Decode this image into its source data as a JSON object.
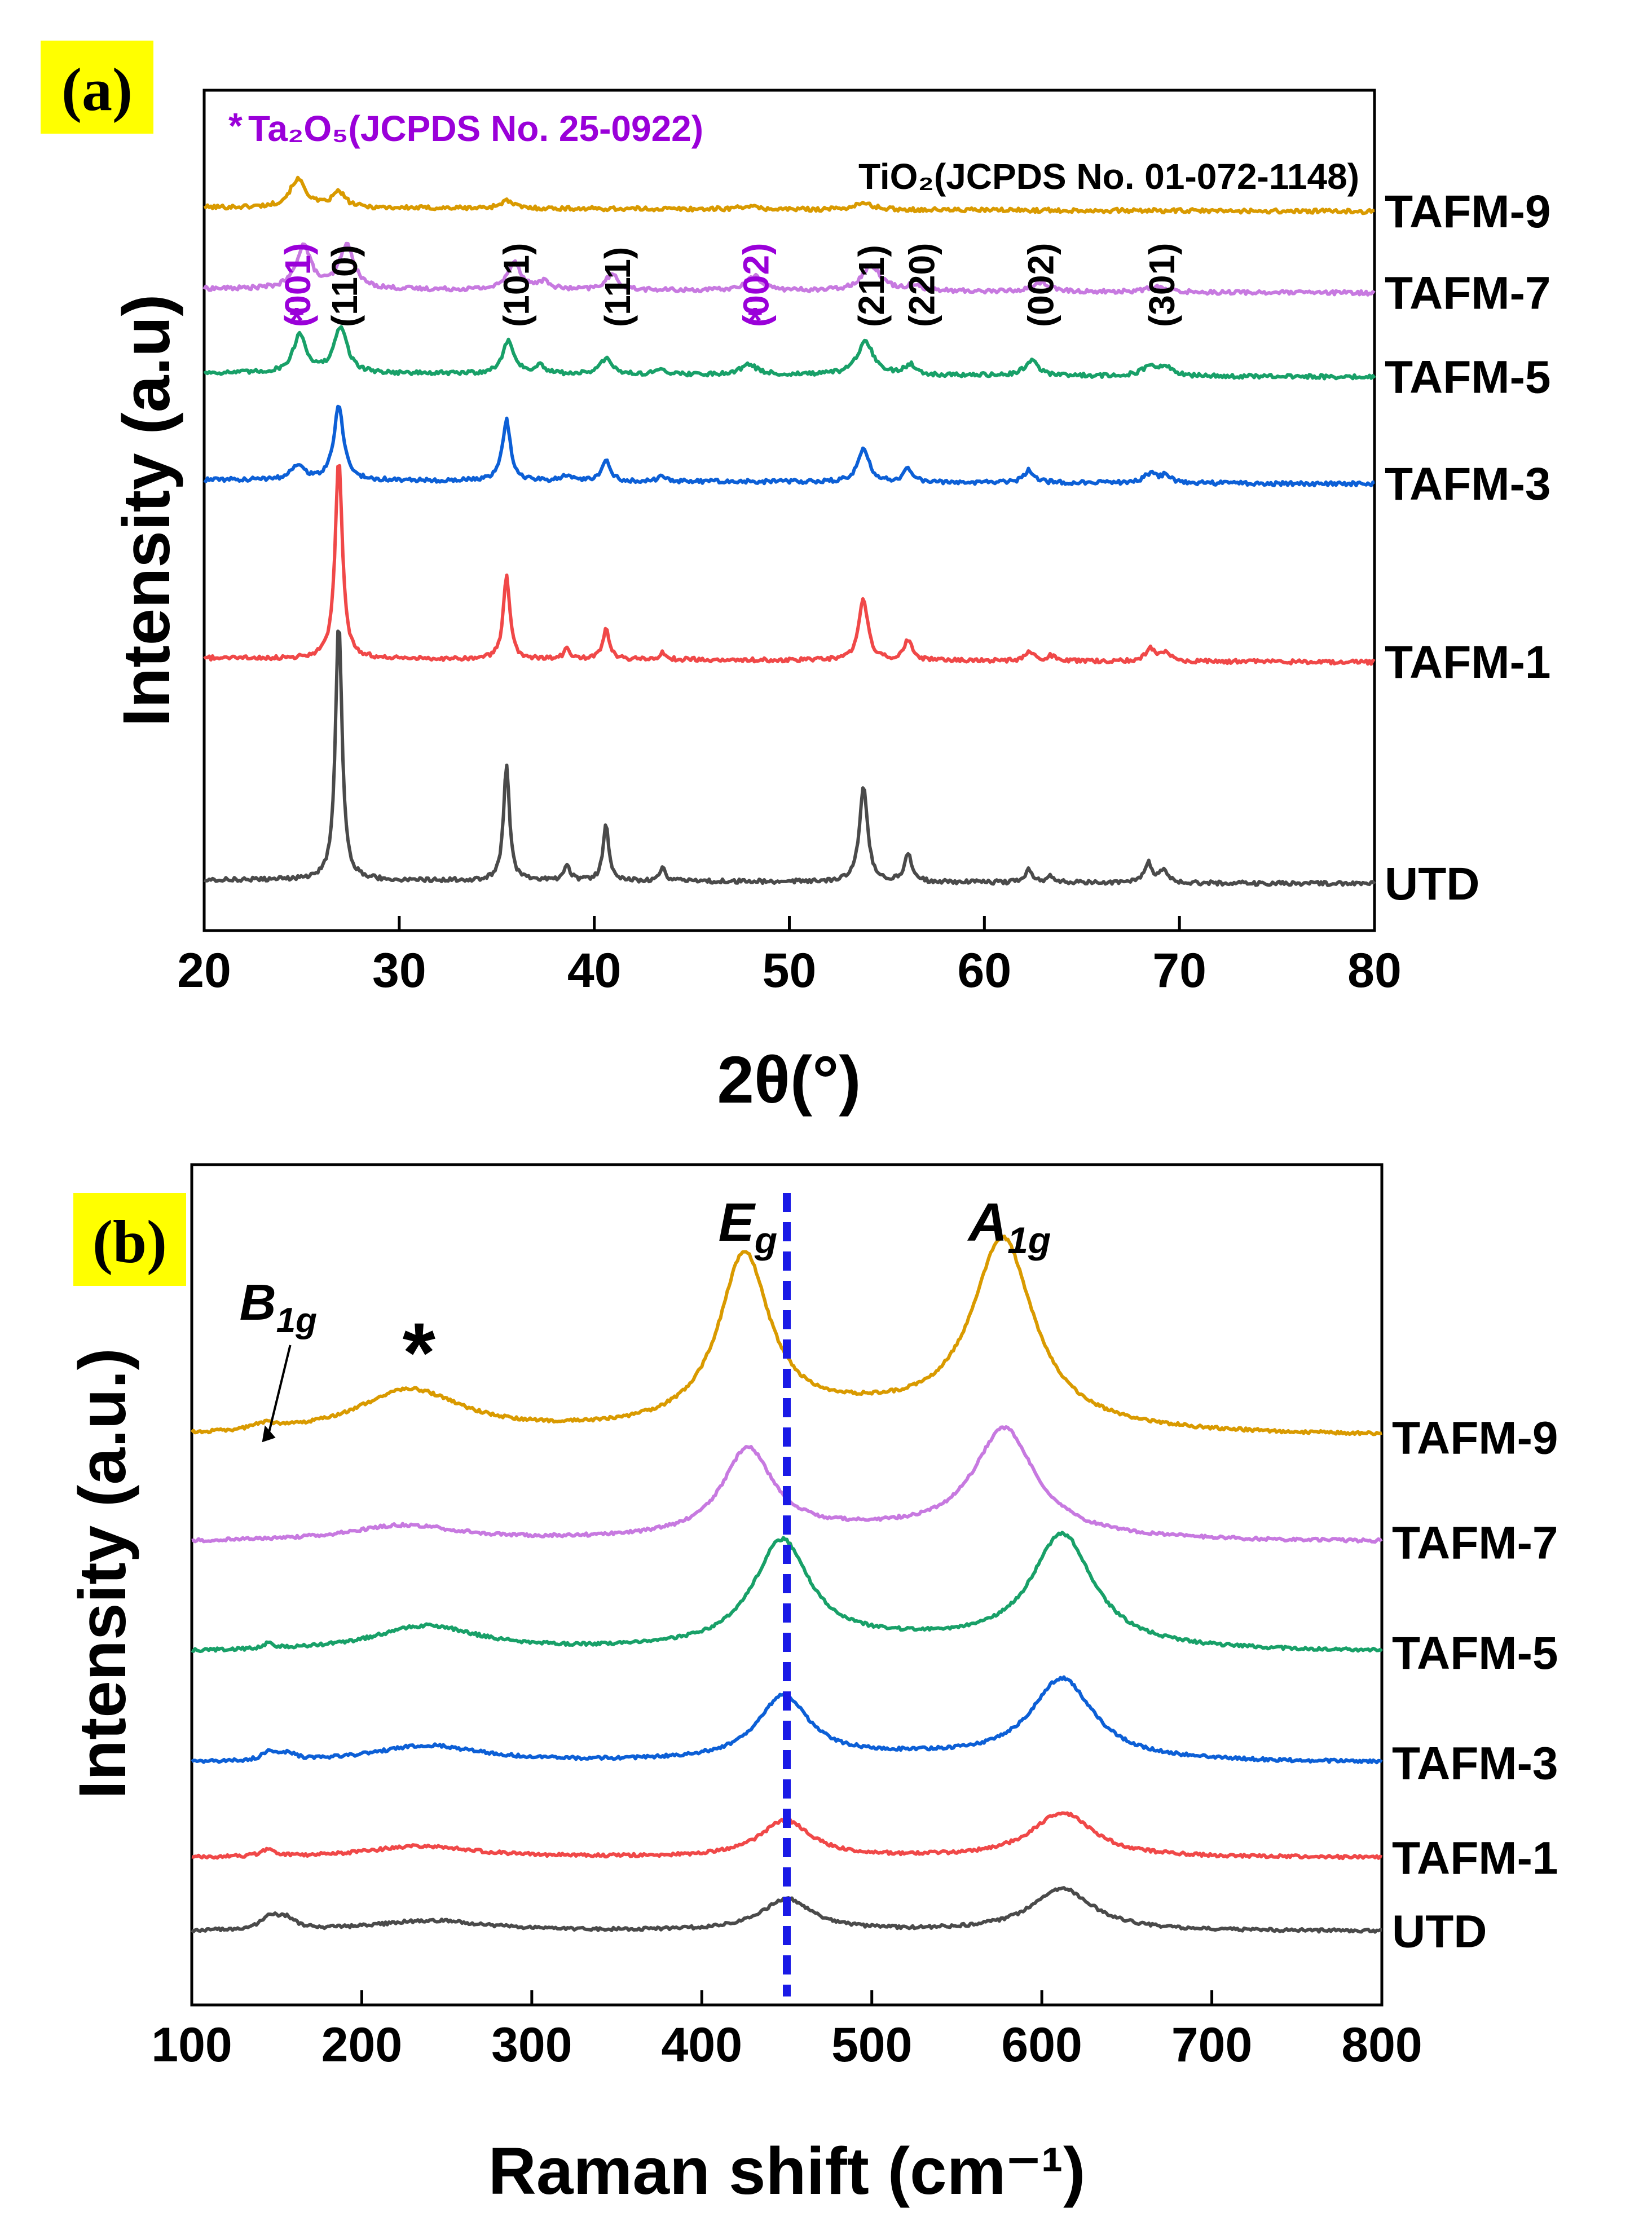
{
  "chart_data": [
    {
      "panel_label": "(a)",
      "type": "line",
      "xlabel": "2θ(°)",
      "ylabel": "Intensity (a.u)",
      "xlim": [
        20,
        80
      ],
      "xticks": [
        20,
        30,
        40,
        50,
        60,
        70,
        80
      ],
      "legend": {
        "ta2o5_marker": "*",
        "ta2o5_text": "Ta₂O₅(JCPDS No. 25-0922)",
        "tio2_text": "TiO₂(JCPDS No. 01-072-1148)",
        "ta2o5_color": "#9a00d9",
        "tio2_color": "#000000"
      },
      "phase_labels": [
        {
          "x": 24.8,
          "text": "(001)",
          "phase": "Ta2O5",
          "star": true
        },
        {
          "x": 27.2,
          "text": "(110)",
          "phase": "TiO2"
        },
        {
          "x": 36.0,
          "text": "(101)",
          "phase": "TiO2"
        },
        {
          "x": 41.2,
          "text": "(111)",
          "phase": "TiO2"
        },
        {
          "x": 48.3,
          "text": "(002)",
          "phase": "Ta2O5",
          "star": true
        },
        {
          "x": 54.2,
          "text": "(211)",
          "phase": "TiO2"
        },
        {
          "x": 56.8,
          "text": "(220)",
          "phase": "TiO2"
        },
        {
          "x": 62.9,
          "text": "(002)",
          "phase": "TiO2"
        },
        {
          "x": 69.1,
          "text": "(301)",
          "phase": "TiO2"
        }
      ],
      "series": [
        {
          "name": "TAFM-9",
          "color": "#d99a00",
          "baseline": 0.92,
          "slope": -0.008,
          "peaks": [
            [
              24.8,
              0.055,
              0.5
            ],
            [
              26.9,
              0.03,
              0.4
            ],
            [
              35.5,
              0.015,
              0.4
            ],
            [
              53.8,
              0.012,
              0.6
            ],
            [
              47.8,
              0.006,
              0.5
            ]
          ]
        },
        {
          "name": "TAFM-7",
          "color": "#c779e0",
          "baseline": 0.76,
          "slope": -0.008,
          "peaks": [
            [
              25.1,
              0.085,
              0.45
            ],
            [
              27.3,
              0.085,
              0.45
            ],
            [
              35.9,
              0.055,
              0.4
            ],
            [
              37.4,
              0.015,
              0.4
            ],
            [
              40.9,
              0.03,
              0.4
            ],
            [
              48.2,
              0.028,
              0.5
            ],
            [
              54.2,
              0.05,
              0.6
            ],
            [
              56.4,
              0.012,
              0.4
            ],
            [
              62.9,
              0.018,
              0.5
            ],
            [
              68.8,
              0.01,
              0.6
            ]
          ]
        },
        {
          "name": "TAFM-5",
          "color": "#18a068",
          "baseline": 0.595,
          "slope": -0.008,
          "peaks": [
            [
              24.9,
              0.075,
              0.4
            ],
            [
              27.0,
              0.09,
              0.4
            ],
            [
              35.6,
              0.065,
              0.35
            ],
            [
              37.2,
              0.015,
              0.3
            ],
            [
              40.6,
              0.03,
              0.35
            ],
            [
              43.5,
              0.01,
              0.3
            ],
            [
              47.9,
              0.02,
              0.5
            ],
            [
              53.9,
              0.065,
              0.5
            ],
            [
              56.2,
              0.02,
              0.35
            ],
            [
              62.4,
              0.03,
              0.4
            ],
            [
              68.5,
              0.018,
              0.5
            ],
            [
              69.3,
              0.015,
              0.4
            ]
          ]
        },
        {
          "name": "TAFM-3",
          "color": "#0c5fd6",
          "baseline": 0.385,
          "slope": -0.008,
          "peaks": [
            [
              24.8,
              0.03,
              0.4
            ],
            [
              26.9,
              0.145,
              0.3
            ],
            [
              35.5,
              0.12,
              0.25
            ],
            [
              38.6,
              0.012,
              0.3
            ],
            [
              40.6,
              0.04,
              0.25
            ],
            [
              43.5,
              0.01,
              0.25
            ],
            [
              53.8,
              0.065,
              0.35
            ],
            [
              56.1,
              0.025,
              0.3
            ],
            [
              62.3,
              0.025,
              0.3
            ],
            [
              68.5,
              0.018,
              0.4
            ],
            [
              69.3,
              0.015,
              0.3
            ]
          ]
        },
        {
          "name": "TAFM-1",
          "color": "#f04848",
          "baseline": 0.035,
          "slope": -0.008,
          "peaks": [
            [
              26.9,
              0.39,
              0.22
            ],
            [
              35.5,
              0.165,
              0.2
            ],
            [
              38.6,
              0.02,
              0.2
            ],
            [
              40.6,
              0.06,
              0.2
            ],
            [
              43.5,
              0.015,
              0.2
            ],
            [
              53.8,
              0.12,
              0.28
            ],
            [
              56.1,
              0.04,
              0.25
            ],
            [
              62.3,
              0.02,
              0.25
            ],
            [
              63.4,
              0.01,
              0.25
            ],
            [
              68.5,
              0.025,
              0.3
            ],
            [
              69.3,
              0.018,
              0.25
            ]
          ]
        },
        {
          "name": "UTD",
          "color": "#4a4a4a",
          "baseline": -0.4,
          "slope": -0.008,
          "peaks": [
            [
              26.9,
              0.51,
              0.2
            ],
            [
              35.5,
              0.23,
              0.18
            ],
            [
              38.6,
              0.03,
              0.2
            ],
            [
              40.6,
              0.11,
              0.18
            ],
            [
              43.5,
              0.025,
              0.2
            ],
            [
              53.8,
              0.185,
              0.25
            ],
            [
              56.1,
              0.055,
              0.22
            ],
            [
              62.3,
              0.025,
              0.2
            ],
            [
              63.4,
              0.012,
              0.2
            ],
            [
              68.4,
              0.04,
              0.25
            ],
            [
              69.2,
              0.025,
              0.22
            ]
          ]
        }
      ]
    },
    {
      "panel_label": "(b)",
      "type": "line",
      "xlabel": "Raman shift (cm⁻¹)",
      "ylabel": "Intensity (a.u.)",
      "xlim": [
        100,
        800
      ],
      "xticks": [
        100,
        200,
        300,
        400,
        500,
        600,
        700,
        800
      ],
      "reference_line_x": 450,
      "reference_line_color": "#1a1ae6",
      "annotations": {
        "eg": {
          "main": "E",
          "sub": "g",
          "x": 428
        },
        "a1g": {
          "main": "A",
          "sub": "1g",
          "x": 580
        },
        "b1g": {
          "main": "B",
          "sub": "1g",
          "x": 143
        },
        "star": {
          "text": "*",
          "x": 227
        }
      },
      "series": [
        {
          "name": "TAFM-9",
          "color": "#d99a00",
          "baseline": 0.6,
          "peaks": [
            [
              143,
              0.012,
              8
            ],
            [
              228,
              0.085,
              38
            ],
            [
              425,
              0.32,
              18
            ],
            [
              577,
              0.355,
              22
            ],
            [
              495,
              0.04,
              90
            ]
          ]
        },
        {
          "name": "TAFM-7",
          "color": "#c779e0",
          "baseline": 0.4,
          "peaks": [
            [
              225,
              0.03,
              40
            ],
            [
              427,
              0.165,
              18
            ],
            [
              578,
              0.205,
              22
            ],
            [
              500,
              0.02,
              90
            ]
          ]
        },
        {
          "name": "TAFM-5",
          "color": "#18a068",
          "baseline": 0.19,
          "peaks": [
            [
              145,
              0.01,
              4
            ],
            [
              238,
              0.048,
              38
            ],
            [
              447,
              0.2,
              20
            ],
            [
              612,
              0.215,
              22
            ],
            [
              520,
              0.02,
              90
            ]
          ]
        },
        {
          "name": "TAFM-3",
          "color": "#0c5fd6",
          "baseline": -0.02,
          "peaks": [
            [
              146,
              0.018,
              5
            ],
            [
              157,
              0.012,
              5
            ],
            [
              238,
              0.032,
              38
            ],
            [
              448,
              0.12,
              18
            ],
            [
              612,
              0.155,
              22
            ],
            [
              520,
              0.012,
              90
            ]
          ]
        },
        {
          "name": "TAFM-1",
          "color": "#f04848",
          "baseline": -0.2,
          "peaks": [
            [
              145,
              0.012,
              5
            ],
            [
              235,
              0.022,
              38
            ],
            [
              449,
              0.07,
              18
            ],
            [
              612,
              0.085,
              22
            ]
          ]
        },
        {
          "name": "UTD",
          "color": "#4a4a4a",
          "baseline": -0.34,
          "peaks": [
            [
              146,
              0.025,
              6
            ],
            [
              156,
              0.02,
              6
            ],
            [
              240,
              0.02,
              40
            ],
            [
              450,
              0.06,
              18
            ],
            [
              612,
              0.08,
              22
            ]
          ]
        }
      ]
    }
  ]
}
